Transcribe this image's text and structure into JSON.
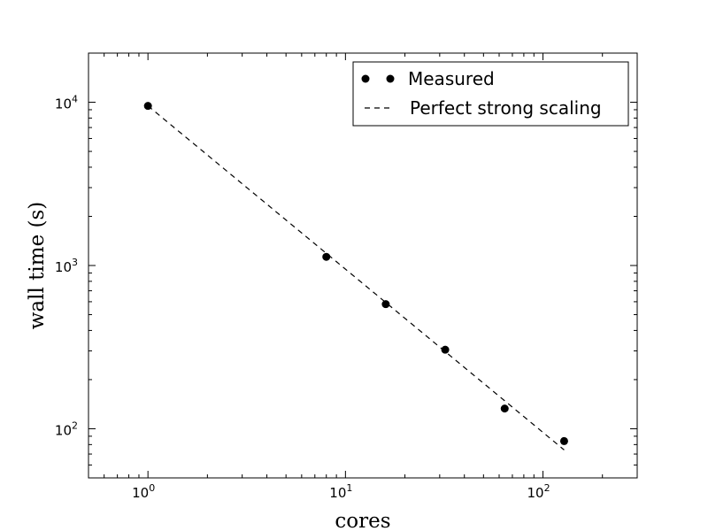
{
  "chart_data": {
    "type": "scatter",
    "title": "",
    "xlabel": "cores",
    "ylabel": "wall time (s)",
    "xscale": "log",
    "yscale": "log",
    "xlim": [
      0.5,
      300
    ],
    "ylim": [
      50,
      20000
    ],
    "x_ticks": [
      {
        "value": 1,
        "base": "10",
        "exp": "0"
      },
      {
        "value": 10,
        "base": "10",
        "exp": "1"
      },
      {
        "value": 100,
        "base": "10",
        "exp": "2"
      }
    ],
    "y_ticks": [
      {
        "value": 100,
        "base": "10",
        "exp": "2"
      },
      {
        "value": 1000,
        "base": "10",
        "exp": "3"
      },
      {
        "value": 10000,
        "base": "10",
        "exp": "4"
      }
    ],
    "grid": false,
    "legend_position": "top-right",
    "series": [
      {
        "name": "Measured",
        "style": "markers",
        "color": "#000000",
        "x": [
          1,
          8,
          16,
          32,
          64,
          128
        ],
        "y": [
          9500,
          1130,
          580,
          305,
          133,
          84
        ]
      },
      {
        "name": "Perfect strong scaling",
        "style": "dashed-line",
        "color": "#000000",
        "x": [
          1,
          128
        ],
        "y": [
          9500,
          74.2
        ]
      }
    ]
  }
}
